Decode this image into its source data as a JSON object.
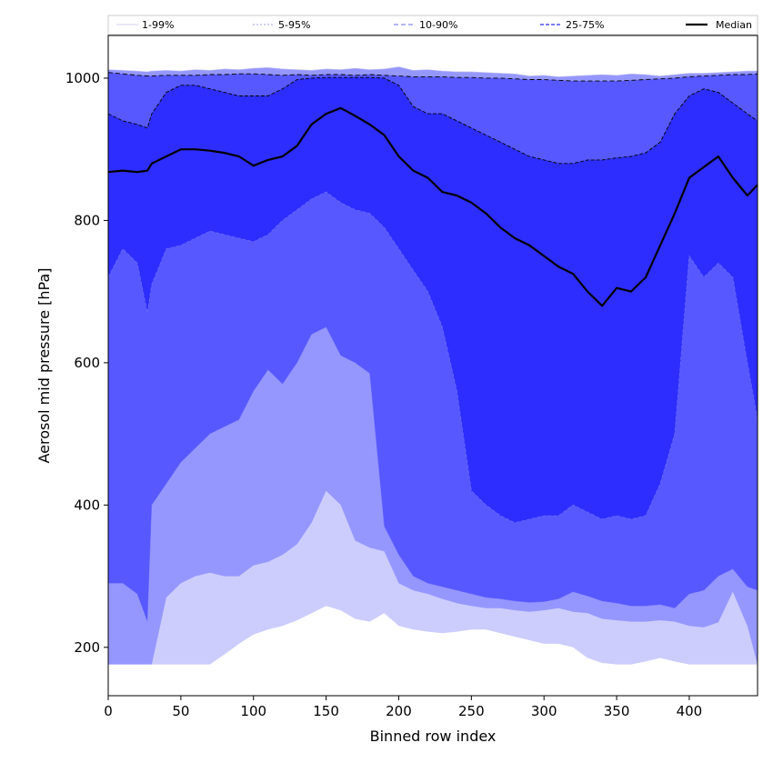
{
  "chart_data": {
    "type": "area",
    "title": "",
    "xlabel": "Binned row index",
    "ylabel": "Aerosol mid pressure [hPa]",
    "xlim": [
      0,
      447
    ],
    "ylim": [
      132,
      1060
    ],
    "x_ticks": [
      0,
      50,
      100,
      150,
      200,
      250,
      300,
      350,
      400
    ],
    "y_ticks": [
      200,
      400,
      600,
      800,
      1000
    ],
    "legend_position": "top, above plot area (full width)",
    "grid": false,
    "x": [
      0,
      10,
      20,
      27,
      30,
      40,
      50,
      60,
      70,
      80,
      90,
      100,
      110,
      120,
      130,
      140,
      150,
      160,
      170,
      180,
      190,
      200,
      210,
      220,
      230,
      240,
      250,
      260,
      270,
      280,
      290,
      300,
      310,
      320,
      330,
      340,
      350,
      360,
      370,
      380,
      390,
      400,
      410,
      420,
      430,
      440,
      447
    ],
    "series": [
      {
        "name": "1-99%",
        "fill": "#cccdfd",
        "line": "#c8c8f0",
        "dash": "none",
        "lower": [
          176,
          176,
          176,
          176,
          176,
          176,
          176,
          176,
          176,
          190,
          205,
          218,
          225,
          230,
          238,
          248,
          258,
          252,
          240,
          236,
          248,
          230,
          225,
          222,
          220,
          222,
          225,
          225,
          220,
          215,
          210,
          205,
          205,
          200,
          185,
          178,
          176,
          176,
          180,
          185,
          180,
          176,
          176,
          176,
          176,
          176,
          176
        ],
        "upper": [
          1012,
          1011,
          1010,
          1009,
          1010,
          1011,
          1010,
          1012,
          1011,
          1013,
          1012,
          1014,
          1015,
          1013,
          1012,
          1011,
          1013,
          1012,
          1014,
          1012,
          1013,
          1016,
          1011,
          1012,
          1010,
          1009,
          1009,
          1008,
          1007,
          1006,
          1003,
          1004,
          1002,
          1003,
          1004,
          1005,
          1004,
          1006,
          1005,
          1003,
          1005,
          1007,
          1007,
          1008,
          1009,
          1010,
          1010
        ]
      },
      {
        "name": "5-95%",
        "fill": "#9697fe",
        "line": "#8080e0",
        "dash": "2,2",
        "lower": [
          176,
          176,
          176,
          176,
          176,
          270,
          290,
          300,
          305,
          300,
          300,
          315,
          320,
          330,
          345,
          375,
          420,
          400,
          350,
          340,
          335,
          290,
          280,
          275,
          268,
          262,
          258,
          255,
          255,
          252,
          250,
          252,
          255,
          250,
          248,
          240,
          238,
          236,
          236,
          238,
          236,
          230,
          228,
          235,
          278,
          230,
          176
        ]
      },
      {
        "name": "10-90%",
        "fill": "#5758ff",
        "line": "#6060f0",
        "dash": "5,3",
        "lower": [
          290,
          290,
          275,
          236,
          400,
          430,
          460,
          480,
          500,
          510,
          520,
          560,
          590,
          570,
          600,
          640,
          650,
          610,
          600,
          585,
          370,
          330,
          300,
          290,
          285,
          280,
          275,
          270,
          268,
          265,
          263,
          264,
          268,
          278,
          272,
          265,
          262,
          258,
          258,
          260,
          255,
          275,
          280,
          300,
          310,
          285,
          280
        ],
        "upper": [
          1008,
          1006,
          1004,
          1003,
          1003,
          1004,
          1004,
          1004,
          1005,
          1005,
          1006,
          1006,
          1005,
          1004,
          1005,
          1004,
          1005,
          1005,
          1004,
          1005,
          1004,
          1003,
          1002,
          1002,
          1002,
          1001,
          1001,
          1000,
          1000,
          999,
          998,
          998,
          997,
          996,
          996,
          996,
          996,
          997,
          998,
          999,
          1000,
          1002,
          1003,
          1004,
          1005,
          1005,
          1006
        ]
      },
      {
        "name": "25-75%",
        "fill": "#2d2dff",
        "line": "#000000",
        "dash": "4,2",
        "lower": [
          720,
          760,
          740,
          670,
          710,
          760,
          765,
          775,
          785,
          780,
          775,
          770,
          780,
          800,
          815,
          830,
          840,
          825,
          815,
          810,
          790,
          760,
          730,
          700,
          650,
          560,
          420,
          400,
          385,
          375,
          380,
          385,
          385,
          400,
          390,
          380,
          385,
          380,
          385,
          430,
          500,
          750,
          720,
          740,
          720,
          600,
          520
        ],
        "upper": [
          950,
          940,
          935,
          930,
          950,
          980,
          990,
          990,
          985,
          980,
          975,
          975,
          975,
          985,
          998,
          1000,
          1001,
          1001,
          1001,
          1001,
          1000,
          990,
          960,
          950,
          950,
          940,
          930,
          920,
          910,
          900,
          890,
          885,
          880,
          880,
          885,
          885,
          888,
          890,
          895,
          910,
          950,
          975,
          985,
          980,
          965,
          950,
          940
        ]
      },
      {
        "name": "Median",
        "line": "#000000",
        "values": [
          868,
          870,
          868,
          870,
          880,
          890,
          900,
          900,
          898,
          895,
          890,
          877,
          885,
          890,
          905,
          935,
          950,
          958,
          947,
          935,
          920,
          890,
          870,
          860,
          840,
          835,
          825,
          810,
          790,
          775,
          765,
          750,
          735,
          725,
          700,
          680,
          705,
          700,
          720,
          765,
          810,
          860,
          875,
          890,
          860,
          835,
          850
        ]
      }
    ]
  }
}
